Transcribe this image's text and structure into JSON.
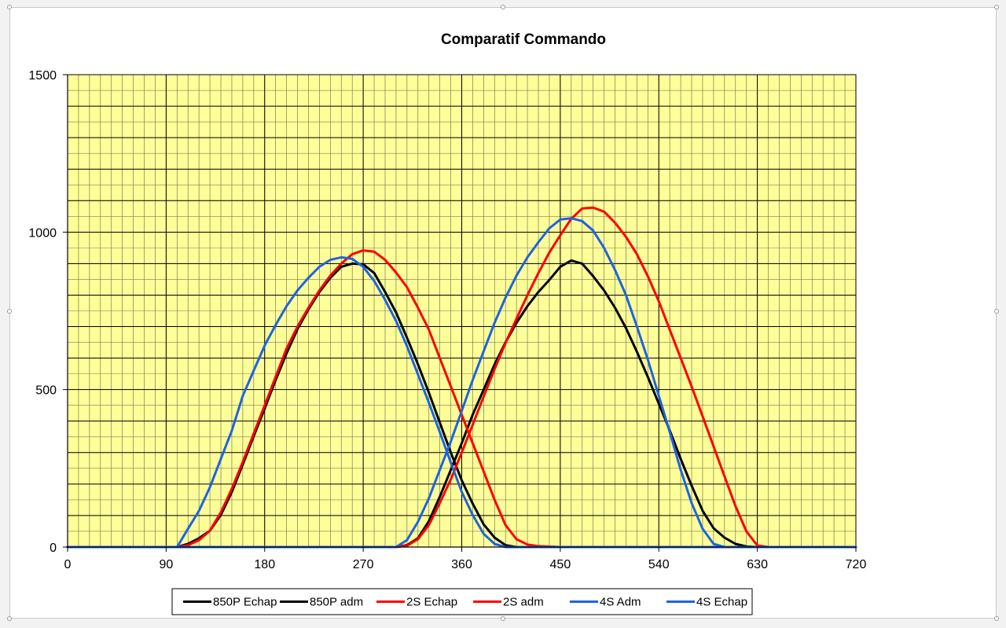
{
  "chart_data": {
    "type": "line",
    "title": "Comparatif Commando",
    "xlabel": "",
    "ylabel": "",
    "xlim": [
      0,
      720
    ],
    "ylim": [
      0,
      1500
    ],
    "x_ticks": [
      0,
      90,
      180,
      270,
      360,
      450,
      540,
      630,
      720
    ],
    "y_ticks": [
      0,
      500,
      1000,
      1500
    ],
    "grid": "minor and major gridlines",
    "plot_background": "#ffff99",
    "legend_position": "bottom",
    "series": [
      {
        "name": "850P Echap",
        "color": "#000000",
        "points": [
          [
            100,
            0
          ],
          [
            110,
            10
          ],
          [
            120,
            28
          ],
          [
            130,
            52
          ],
          [
            140,
            102
          ],
          [
            150,
            175
          ],
          [
            160,
            262
          ],
          [
            170,
            352
          ],
          [
            180,
            440
          ],
          [
            190,
            530
          ],
          [
            200,
            615
          ],
          [
            210,
            692
          ],
          [
            220,
            755
          ],
          [
            230,
            810
          ],
          [
            240,
            855
          ],
          [
            250,
            890
          ],
          [
            260,
            900
          ],
          [
            270,
            898
          ],
          [
            280,
            870
          ],
          [
            290,
            810
          ],
          [
            300,
            745
          ],
          [
            310,
            665
          ],
          [
            320,
            580
          ],
          [
            330,
            490
          ],
          [
            340,
            395
          ],
          [
            350,
            300
          ],
          [
            360,
            212
          ],
          [
            370,
            138
          ],
          [
            380,
            72
          ],
          [
            390,
            30
          ],
          [
            400,
            6
          ],
          [
            410,
            0
          ],
          [
            720,
            0
          ]
        ]
      },
      {
        "name": "850P adm",
        "color": "#000000",
        "points": [
          [
            0,
            0
          ],
          [
            300,
            0
          ],
          [
            310,
            6
          ],
          [
            320,
            28
          ],
          [
            330,
            82
          ],
          [
            340,
            160
          ],
          [
            350,
            245
          ],
          [
            360,
            330
          ],
          [
            370,
            420
          ],
          [
            380,
            500
          ],
          [
            390,
            580
          ],
          [
            400,
            650
          ],
          [
            410,
            712
          ],
          [
            420,
            765
          ],
          [
            430,
            810
          ],
          [
            440,
            848
          ],
          [
            450,
            890
          ],
          [
            460,
            910
          ],
          [
            470,
            900
          ],
          [
            480,
            860
          ],
          [
            490,
            815
          ],
          [
            500,
            760
          ],
          [
            510,
            695
          ],
          [
            520,
            620
          ],
          [
            530,
            540
          ],
          [
            540,
            455
          ],
          [
            550,
            370
          ],
          [
            560,
            280
          ],
          [
            570,
            195
          ],
          [
            580,
            115
          ],
          [
            590,
            60
          ],
          [
            600,
            30
          ],
          [
            610,
            10
          ],
          [
            620,
            2
          ],
          [
            630,
            0
          ],
          [
            720,
            0
          ]
        ]
      },
      {
        "name": "2S Echap",
        "color": "#ff0000",
        "points": [
          [
            100,
            0
          ],
          [
            110,
            6
          ],
          [
            120,
            22
          ],
          [
            130,
            52
          ],
          [
            140,
            110
          ],
          [
            150,
            185
          ],
          [
            160,
            270
          ],
          [
            170,
            360
          ],
          [
            180,
            450
          ],
          [
            190,
            540
          ],
          [
            200,
            630
          ],
          [
            210,
            700
          ],
          [
            220,
            760
          ],
          [
            230,
            815
          ],
          [
            240,
            862
          ],
          [
            250,
            900
          ],
          [
            260,
            930
          ],
          [
            270,
            942
          ],
          [
            280,
            938
          ],
          [
            290,
            912
          ],
          [
            300,
            872
          ],
          [
            310,
            825
          ],
          [
            320,
            760
          ],
          [
            330,
            690
          ],
          [
            340,
            600
          ],
          [
            350,
            510
          ],
          [
            360,
            420
          ],
          [
            370,
            330
          ],
          [
            380,
            240
          ],
          [
            390,
            150
          ],
          [
            400,
            70
          ],
          [
            410,
            25
          ],
          [
            420,
            8
          ],
          [
            430,
            3
          ],
          [
            450,
            0
          ],
          [
            720,
            0
          ]
        ]
      },
      {
        "name": "2S adm",
        "color": "#ff0000",
        "points": [
          [
            0,
            0
          ],
          [
            300,
            0
          ],
          [
            310,
            4
          ],
          [
            320,
            25
          ],
          [
            330,
            70
          ],
          [
            340,
            140
          ],
          [
            350,
            215
          ],
          [
            360,
            300
          ],
          [
            370,
            388
          ],
          [
            380,
            478
          ],
          [
            390,
            565
          ],
          [
            400,
            648
          ],
          [
            410,
            725
          ],
          [
            420,
            800
          ],
          [
            430,
            870
          ],
          [
            440,
            935
          ],
          [
            450,
            990
          ],
          [
            460,
            1042
          ],
          [
            470,
            1075
          ],
          [
            480,
            1078
          ],
          [
            490,
            1065
          ],
          [
            500,
            1030
          ],
          [
            510,
            985
          ],
          [
            520,
            930
          ],
          [
            530,
            860
          ],
          [
            540,
            780
          ],
          [
            550,
            690
          ],
          [
            560,
            600
          ],
          [
            570,
            510
          ],
          [
            580,
            415
          ],
          [
            590,
            320
          ],
          [
            600,
            225
          ],
          [
            610,
            130
          ],
          [
            620,
            50
          ],
          [
            630,
            5
          ],
          [
            640,
            0
          ],
          [
            720,
            0
          ]
        ]
      },
      {
        "name": "4S Adm",
        "color": "#1f63e0",
        "points": [
          [
            90,
            0
          ],
          [
            100,
            0
          ],
          [
            110,
            58
          ],
          [
            120,
            115
          ],
          [
            130,
            190
          ],
          [
            140,
            280
          ],
          [
            150,
            370
          ],
          [
            160,
            480
          ],
          [
            170,
            560
          ],
          [
            180,
            640
          ],
          [
            190,
            705
          ],
          [
            200,
            765
          ],
          [
            210,
            815
          ],
          [
            220,
            855
          ],
          [
            230,
            890
          ],
          [
            240,
            912
          ],
          [
            250,
            920
          ],
          [
            260,
            915
          ],
          [
            270,
            890
          ],
          [
            280,
            845
          ],
          [
            290,
            785
          ],
          [
            300,
            718
          ],
          [
            310,
            638
          ],
          [
            320,
            548
          ],
          [
            330,
            458
          ],
          [
            340,
            365
          ],
          [
            350,
            268
          ],
          [
            360,
            175
          ],
          [
            370,
            102
          ],
          [
            380,
            42
          ],
          [
            390,
            10
          ],
          [
            400,
            0
          ],
          [
            720,
            0
          ]
        ]
      },
      {
        "name": "4S Echap",
        "color": "#1f63e0",
        "points": [
          [
            0,
            0
          ],
          [
            300,
            0
          ],
          [
            310,
            22
          ],
          [
            320,
            80
          ],
          [
            330,
            155
          ],
          [
            340,
            245
          ],
          [
            350,
            335
          ],
          [
            360,
            432
          ],
          [
            370,
            530
          ],
          [
            380,
            622
          ],
          [
            390,
            712
          ],
          [
            400,
            792
          ],
          [
            410,
            862
          ],
          [
            420,
            920
          ],
          [
            430,
            968
          ],
          [
            440,
            1012
          ],
          [
            450,
            1040
          ],
          [
            460,
            1044
          ],
          [
            470,
            1035
          ],
          [
            480,
            1005
          ],
          [
            490,
            950
          ],
          [
            500,
            880
          ],
          [
            510,
            800
          ],
          [
            520,
            700
          ],
          [
            530,
            595
          ],
          [
            540,
            480
          ],
          [
            550,
            365
          ],
          [
            560,
            245
          ],
          [
            570,
            140
          ],
          [
            580,
            58
          ],
          [
            590,
            10
          ],
          [
            600,
            0
          ],
          [
            720,
            0
          ]
        ]
      }
    ]
  }
}
